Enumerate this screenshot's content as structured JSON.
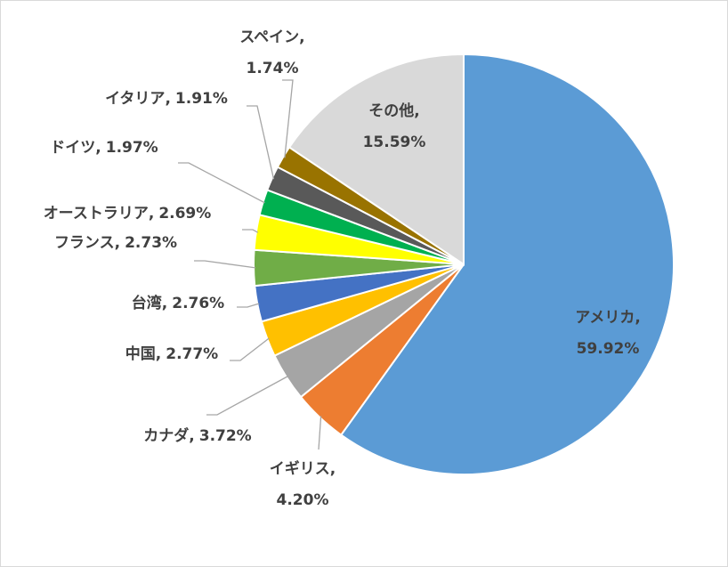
{
  "chart_data": {
    "type": "pie",
    "categories": [
      "アメリカ",
      "イギリス",
      "カナダ",
      "中国",
      "台湾",
      "フランス",
      "オーストラリア",
      "ドイツ",
      "イタリア",
      "スペイン",
      "その他"
    ],
    "values": [
      59.92,
      4.2,
      3.72,
      2.77,
      2.76,
      2.73,
      2.69,
      1.97,
      1.91,
      1.74,
      15.59
    ],
    "value_labels": [
      "59.92%",
      "4.20%",
      "3.72%",
      "2.77%",
      "2.76%",
      "2.73%",
      "2.69%",
      "1.97%",
      "1.91%",
      "1.74%",
      "15.59%"
    ],
    "label_separator": ",",
    "colors": [
      "#5b9bd5",
      "#ed7d31",
      "#a5a5a5",
      "#ffc000",
      "#4472c4",
      "#70ad47",
      "#ffff00",
      "#00b050",
      "#595959",
      "#997300",
      "#d9d9d9"
    ]
  }
}
